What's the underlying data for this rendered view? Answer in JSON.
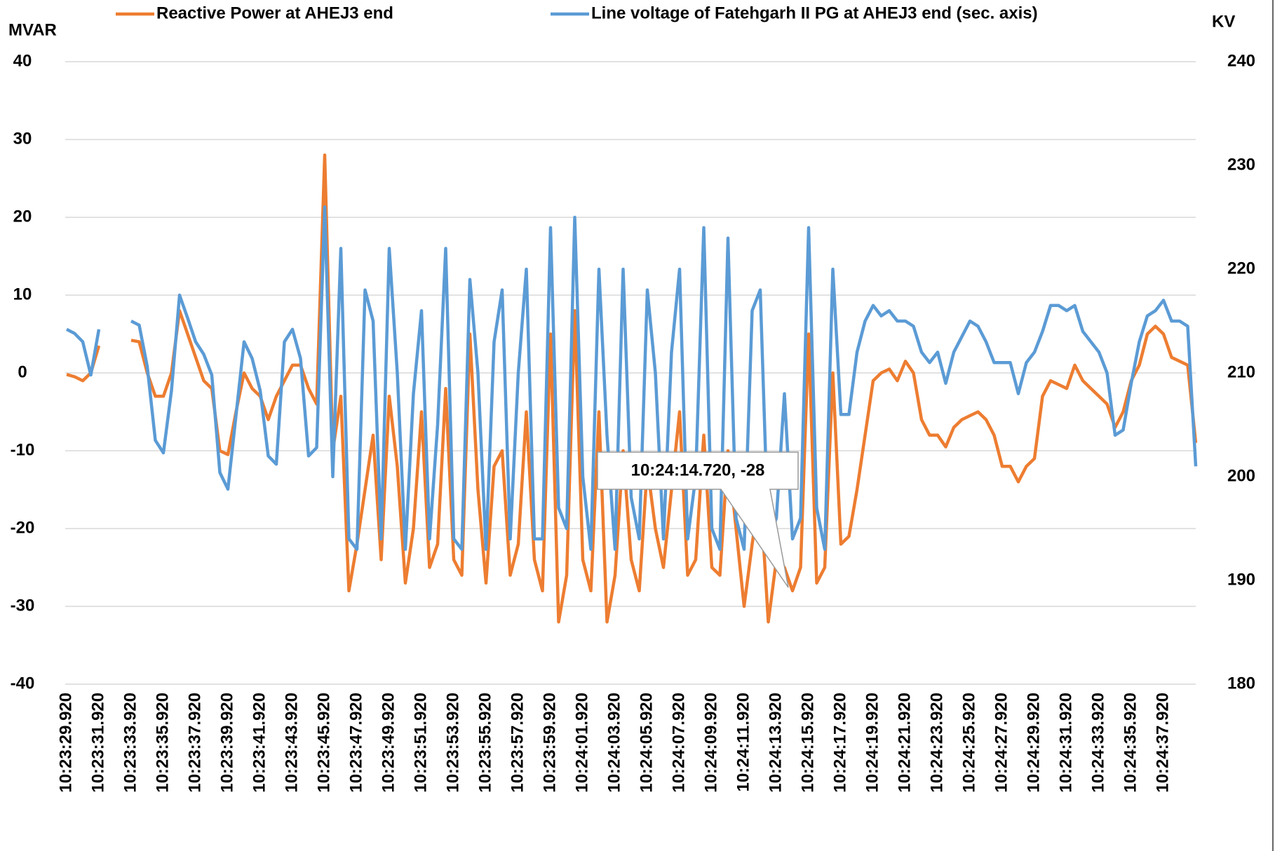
{
  "chart_data": {
    "type": "line",
    "y_label": "MVAR",
    "y2_label": "KV",
    "categories": [
      "10:23:29.920",
      null,
      null,
      null,
      "10:23:31.920",
      null,
      null,
      null,
      "10:23:33.920",
      null,
      null,
      null,
      "10:23:35.920",
      null,
      null,
      null,
      "10:23:37.920",
      null,
      null,
      null,
      "10:23:39.920",
      null,
      null,
      null,
      "10:23:41.920",
      null,
      null,
      null,
      "10:23:43.920",
      null,
      null,
      null,
      "10:23:45.920",
      null,
      null,
      null,
      "10:23:47.920",
      null,
      null,
      null,
      "10:23:49.920",
      null,
      null,
      null,
      "10:23:51.920",
      null,
      null,
      null,
      "10:23:53.920",
      null,
      null,
      null,
      "10:23:55.920",
      null,
      null,
      null,
      "10:23:57.920",
      null,
      null,
      null,
      "10:23:59.920",
      null,
      null,
      null,
      "10:24:01.920",
      null,
      null,
      null,
      "10:24:03.920",
      null,
      null,
      null,
      "10:24:05.920",
      null,
      null,
      null,
      "10:24:07.920",
      null,
      null,
      null,
      "10:24:09.920",
      null,
      null,
      null,
      "10:24:11.920",
      null,
      null,
      null,
      "10:24:13.920",
      null,
      null,
      null,
      "10:24:15.920",
      null,
      null,
      null,
      "10:24:17.920",
      null,
      null,
      null,
      "10:24:19.920",
      null,
      null,
      null,
      "10:24:21.920",
      null,
      null,
      null,
      "10:24:23.920",
      null,
      null,
      null,
      "10:24:25.920",
      null,
      null,
      null,
      "10:24:27.920",
      null,
      null,
      null,
      "10:24:29.920",
      null,
      null,
      null,
      "10:24:31.920",
      null,
      null,
      null,
      "10:24:33.920",
      null,
      null,
      null,
      "10:24:35.920",
      null,
      null,
      null,
      "10:24:37.920",
      null,
      null,
      null,
      null
    ],
    "series": [
      {
        "name": "Reactive Power at AHEJ3 end",
        "color": "#ed7d31",
        "axis": "y",
        "values": [
          -0.2,
          -0.5,
          -1,
          0,
          3.5,
          null,
          null,
          null,
          4.2,
          4,
          0,
          -3,
          -3,
          0,
          8,
          5,
          2,
          -1,
          -2,
          -10,
          -10.5,
          -5,
          0,
          -2,
          -3,
          -6,
          -3,
          -1,
          1,
          1,
          -2,
          -4,
          28,
          -10,
          -3,
          -28,
          -22,
          -15,
          -8,
          -24,
          -3,
          -12,
          -27,
          -20,
          -5,
          -25,
          -22,
          -2,
          -24,
          -26,
          5,
          -15,
          -27,
          -12,
          -10,
          -26,
          -22,
          -5,
          -24,
          -28,
          5,
          -32,
          -26,
          8,
          -24,
          -28,
          -5,
          -32,
          -26,
          -10,
          -24,
          -28,
          -12,
          -20,
          -25,
          -15,
          -5,
          -26,
          -24,
          -8,
          -25,
          -26,
          -10,
          -20,
          -30,
          -22,
          -15,
          -32,
          -24,
          -25,
          -28,
          -25,
          5,
          -27,
          -25,
          0,
          -22,
          -21,
          -15,
          -8,
          -1,
          0,
          0.5,
          -1,
          1.5,
          0,
          -6,
          -8,
          -8,
          -9.5,
          -7,
          -6,
          -5.5,
          -5,
          -6,
          -8,
          -12,
          -12,
          -14,
          -12,
          -11,
          -3,
          -1,
          -1.5,
          -2,
          1,
          -1,
          -2,
          -3,
          -4,
          -7,
          -5,
          -1,
          1,
          5,
          6,
          5,
          2,
          1.5,
          1,
          -9
        ]
      },
      {
        "name": "Line voltage of Fatehgarh II PG at AHEJ3 end (sec. axis)",
        "color": "#5b9bd5",
        "axis": "y2",
        "values": [
          214.2,
          213.8,
          213,
          209.8,
          214.2,
          null,
          null,
          null,
          215,
          214.6,
          210.6,
          203.5,
          202.3,
          208.3,
          217.5,
          215.3,
          213,
          211.8,
          209.8,
          200.4,
          198.8,
          205.9,
          213,
          211.4,
          208.3,
          202,
          201.2,
          213,
          214.2,
          211.4,
          202,
          202.8,
          226,
          200,
          222,
          194,
          193,
          218,
          215,
          194,
          222,
          210,
          193,
          208,
          216,
          194,
          205,
          222,
          194,
          193,
          219,
          210,
          193,
          213,
          218,
          194,
          210,
          220,
          194,
          194,
          224,
          197,
          195,
          225,
          200,
          193,
          220,
          204,
          193,
          220,
          198,
          194,
          218,
          210,
          194,
          212,
          220,
          194,
          200,
          224,
          195,
          193,
          223,
          196,
          193,
          216,
          218,
          194,
          196,
          208,
          194,
          196,
          224,
          197,
          193,
          220,
          206,
          206,
          212,
          215,
          216.5,
          215.5,
          216,
          215,
          215,
          214.5,
          212,
          211,
          212,
          209,
          212,
          213.5,
          215,
          214.5,
          213,
          211,
          211,
          211,
          208,
          211,
          212,
          214,
          216.5,
          216.5,
          216,
          216.5,
          214,
          213,
          212,
          210,
          204,
          204.5,
          209,
          213,
          215.5,
          216,
          217,
          215,
          215,
          214.5,
          201
        ]
      }
    ],
    "ylim": [
      -40,
      40
    ],
    "yticks": [
      -40,
      -30,
      -20,
      -10,
      0,
      10,
      20,
      30,
      40
    ],
    "y2lim": [
      180,
      240
    ],
    "y2ticks": [
      180,
      190,
      200,
      210,
      220,
      230,
      240
    ],
    "grid": true,
    "annotations": [
      {
        "text": "10:24:14.720, -28"
      }
    ]
  }
}
